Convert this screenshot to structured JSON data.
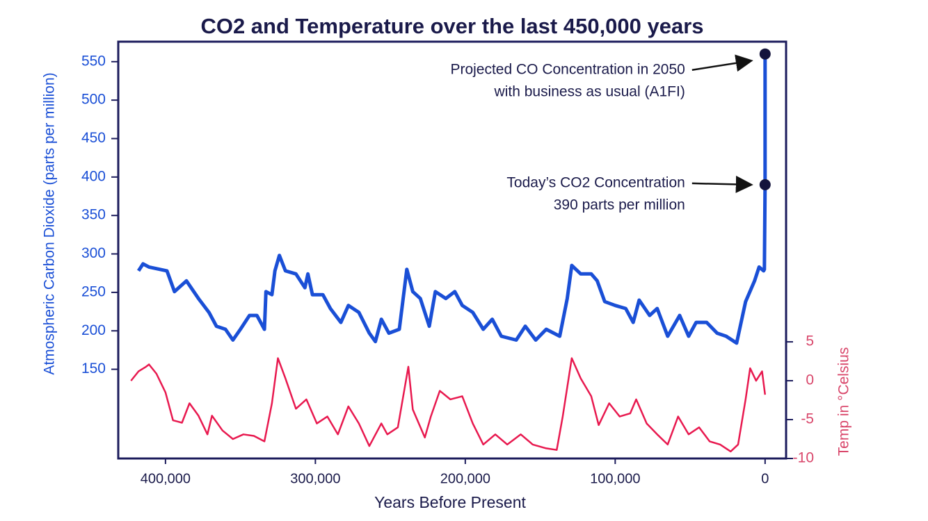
{
  "chart_data": {
    "type": "line",
    "title": "CO2 and Temperature over the last 450,000 years",
    "xlabel": "Years Before Present",
    "ylabel": "Atmospheric Carbon Dioxide (parts per million)",
    "y2label": "Temp in °Celsius",
    "xlim": [
      431500,
      -14000
    ],
    "xticks": [
      {
        "value": 400000,
        "label": "400,000"
      },
      {
        "value": 300000,
        "label": "300,000"
      },
      {
        "value": 200000,
        "label": "200,000"
      },
      {
        "value": 100000,
        "label": "100,000"
      },
      0
    ],
    "ylim": [
      34,
      576
    ],
    "yticks": [
      150,
      200,
      250,
      300,
      350,
      400,
      450,
      500,
      550
    ],
    "y2lim": [
      -10,
      43.6
    ],
    "y2ticks": [
      5,
      0,
      -5,
      -10
    ],
    "series": [
      {
        "color": "#1a4fd6",
        "axis": "y",
        "x": [
          418000,
          415000,
          411000,
          399000,
          394000,
          386000,
          378000,
          371000,
          366000,
          360000,
          355000,
          350000,
          344000,
          339000,
          334000,
          333000,
          329000,
          327000,
          324000,
          320000,
          313000,
          307000,
          305000,
          302000,
          295000,
          290000,
          283000,
          278000,
          271000,
          264000,
          260000,
          256000,
          251000,
          244000,
          239000,
          235000,
          230000,
          224000,
          220000,
          213000,
          207000,
          202000,
          195000,
          188000,
          182000,
          176000,
          166000,
          160000,
          153000,
          146000,
          137000,
          132000,
          129000,
          123000,
          116000,
          112000,
          107000,
          100000,
          93000,
          88000,
          84000,
          77000,
          72000,
          65000,
          57000,
          51000,
          46000,
          39000,
          32000,
          26000,
          19000,
          13000,
          7000,
          4000,
          1000,
          500,
          0,
          0
        ],
        "values": [
          278,
          287,
          283,
          278,
          251,
          265,
          242,
          224,
          206,
          202,
          188,
          202,
          220,
          220,
          202,
          251,
          247,
          278,
          298,
          278,
          274,
          256,
          274,
          247,
          247,
          229,
          211,
          233,
          224,
          197,
          186,
          215,
          197,
          202,
          280,
          251,
          242,
          206,
          251,
          242,
          251,
          233,
          224,
          202,
          215,
          193,
          188,
          206,
          188,
          202,
          193,
          242,
          285,
          274,
          274,
          265,
          238,
          233,
          229,
          211,
          240,
          220,
          229,
          193,
          220,
          193,
          211,
          211,
          197,
          193,
          184,
          238,
          265,
          283,
          278,
          280,
          390,
          560
        ]
      },
      {
        "color": "#e8194f",
        "axis": "y2",
        "x": [
          423000,
          418000,
          413000,
          411000,
          406000,
          400000,
          395000,
          389000,
          384000,
          378000,
          372000,
          369000,
          362000,
          355000,
          348000,
          341000,
          334000,
          329000,
          325000,
          320000,
          313000,
          306000,
          299000,
          292000,
          285000,
          278000,
          271000,
          264000,
          256000,
          252000,
          245000,
          238000,
          235000,
          227000,
          223000,
          217000,
          210000,
          202000,
          195000,
          188000,
          180000,
          172000,
          163000,
          155000,
          146000,
          139000,
          135000,
          129000,
          123000,
          116000,
          111000,
          104000,
          97000,
          90000,
          86000,
          79000,
          72000,
          65000,
          58000,
          51000,
          44000,
          37000,
          30000,
          23000,
          18000,
          13000,
          10000,
          6000,
          2000,
          0
        ],
        "values": [
          0,
          1.2,
          1.8,
          2.1,
          0.9,
          -1.5,
          -5.1,
          -5.4,
          -2.9,
          -4.5,
          -6.9,
          -4.5,
          -6.4,
          -7.5,
          -6.9,
          -7.1,
          -7.8,
          -2.9,
          2.9,
          0.3,
          -3.6,
          -2.4,
          -5.5,
          -4.6,
          -6.9,
          -3.3,
          -5.5,
          -8.4,
          -5.5,
          -6.9,
          -6.0,
          1.8,
          -3.7,
          -7.3,
          -4.6,
          -1.3,
          -2.4,
          -2.0,
          -5.5,
          -8.2,
          -6.9,
          -8.2,
          -6.9,
          -8.2,
          -8.7,
          -8.9,
          -4.6,
          2.9,
          0.3,
          -2.0,
          -5.7,
          -2.9,
          -4.6,
          -4.2,
          -2.4,
          -5.5,
          -6.9,
          -8.2,
          -4.6,
          -6.9,
          -6.0,
          -7.8,
          -8.2,
          -9.1,
          -8.2,
          -2.4,
          1.6,
          0,
          1.2,
          -1.8
        ]
      }
    ],
    "annotations": [
      {
        "text": [
          "Projected CO Concentration in 2050",
          "with business as usual (A1FI)"
        ],
        "x": 0,
        "y": 560
      },
      {
        "text": [
          "Today’s CO2 Concentration",
          "390 parts per million"
        ],
        "x": 0,
        "y": 390
      }
    ]
  }
}
